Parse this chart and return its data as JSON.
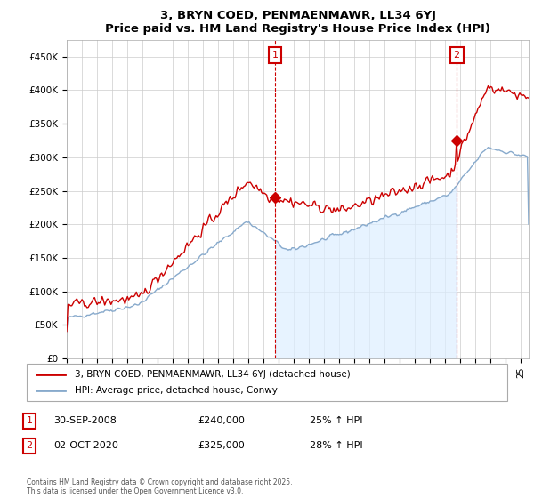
{
  "title": "3, BRYN COED, PENMAENMAWR, LL34 6YJ",
  "subtitle": "Price paid vs. HM Land Registry's House Price Index (HPI)",
  "legend_label_red": "3, BRYN COED, PENMAENMAWR, LL34 6YJ (detached house)",
  "legend_label_blue": "HPI: Average price, detached house, Conwy",
  "annotation1_label": "1",
  "annotation1_date": "30-SEP-2008",
  "annotation1_price": "£240,000",
  "annotation1_hpi": "25% ↑ HPI",
  "annotation2_label": "2",
  "annotation2_date": "02-OCT-2020",
  "annotation2_price": "£325,000",
  "annotation2_hpi": "28% ↑ HPI",
  "footer": "Contains HM Land Registry data © Crown copyright and database right 2025.\nThis data is licensed under the Open Government Licence v3.0.",
  "red_color": "#cc0000",
  "blue_color": "#88aacc",
  "blue_fill_color": "#ddeeff",
  "annotation_color": "#cc0000",
  "ylim": [
    0,
    475000
  ],
  "yticks": [
    0,
    50000,
    100000,
    150000,
    200000,
    250000,
    300000,
    350000,
    400000,
    450000
  ],
  "background_color": "#ffffff",
  "grid_color": "#cccccc",
  "sale1_year": 2008.75,
  "sale1_value": 240000,
  "sale2_year": 2020.75,
  "sale2_value": 325000
}
